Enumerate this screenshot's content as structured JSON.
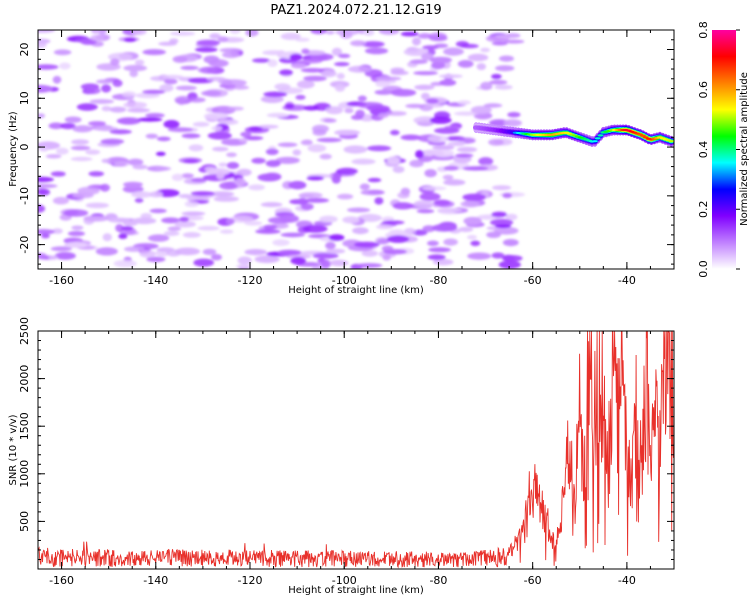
{
  "chart_data": [
    {
      "type": "heatmap",
      "title": "PAZ1.2024.072.21.12.G19",
      "xlabel": "Height of straight line (km)",
      "ylabel": "Frequency (Hz)",
      "xlim": [
        -165,
        -30
      ],
      "ylim": [
        -25,
        24
      ],
      "x_ticks": [
        -160,
        -140,
        -120,
        -100,
        -80,
        -60,
        -40
      ],
      "x_tick_labels": [
        "-160",
        "-140",
        "-120",
        "-100",
        "-80",
        "-60",
        "-40"
      ],
      "y_ticks": [
        -20,
        -10,
        0,
        10,
        20
      ],
      "y_tick_labels": [
        "-20",
        "-10",
        "0",
        "10",
        "20"
      ],
      "colorbar": {
        "label": "Normalized spectral amplitude",
        "range": [
          0,
          0.8
        ],
        "ticks": [
          0,
          0.2,
          0.4,
          0.6,
          0.8
        ],
        "tick_labels": [
          "0.0",
          "0.2",
          "0.4",
          "0.6",
          "0.8"
        ],
        "colors": [
          "#ffffff",
          "#c080ff",
          "#8000ff",
          "#0000ff",
          "#00ffff",
          "#00ff00",
          "#ffff00",
          "#ff8000",
          "#ff0000",
          "#ff00a0"
        ]
      },
      "noise_region": {
        "x_range": [
          -165,
          -63
        ],
        "freq_range": [
          -25,
          24
        ],
        "typical_amplitude": 0.1
      },
      "signal_ridge": {
        "x": [
          -72,
          -68,
          -64,
          -60,
          -56,
          -53,
          -50,
          -47,
          -45,
          -43,
          -40,
          -37,
          -35,
          -33,
          -30
        ],
        "freq": [
          4,
          3.5,
          3,
          2.5,
          2.5,
          3,
          2,
          1,
          3,
          3.5,
          3.5,
          2.5,
          1.5,
          2,
          1
        ],
        "amplitude": [
          0.15,
          0.2,
          0.3,
          0.5,
          0.6,
          0.55,
          0.45,
          0.35,
          0.4,
          0.5,
          0.75,
          0.65,
          0.7,
          0.55,
          0.5
        ]
      }
    },
    {
      "type": "line",
      "xlabel": "Height of straight line (km)",
      "ylabel": "SNR (10 * v/v)",
      "xlim": [
        -165,
        -30
      ],
      "ylim": [
        0,
        2500
      ],
      "x_ticks": [
        -160,
        -140,
        -120,
        -100,
        -80,
        -60,
        -40
      ],
      "x_tick_labels": [
        "-160",
        "-140",
        "-120",
        "-100",
        "-80",
        "-60",
        "-40"
      ],
      "y_ticks": [
        500,
        1000,
        1500,
        2000,
        2500
      ],
      "y_tick_labels": [
        "500",
        "1000",
        "1500",
        "2000",
        "2500"
      ],
      "color": "#e8302a",
      "series": [
        {
          "x": [
            -165,
            -150,
            -135,
            -120,
            -105,
            -90,
            -75,
            -68,
            -65,
            -62,
            -60,
            -58,
            -56,
            -55,
            -54,
            -53,
            -52,
            -51,
            -50,
            -49,
            -48,
            -47,
            -46,
            -45,
            -44,
            -43,
            -42,
            -41,
            -40,
            -39,
            -38,
            -37,
            -36,
            -35,
            -34,
            -33,
            -32,
            -31,
            -30
          ],
          "y": [
            150,
            140,
            140,
            135,
            130,
            125,
            120,
            140,
            200,
            400,
            900,
            600,
            350,
            250,
            500,
            1100,
            1500,
            800,
            1700,
            1000,
            2300,
            1400,
            2400,
            1800,
            1000,
            2200,
            1500,
            1900,
            1200,
            800,
            1600,
            1100,
            2000,
            1500,
            1800,
            1300,
            2100,
            2450,
            1800
          ]
        }
      ]
    }
  ]
}
